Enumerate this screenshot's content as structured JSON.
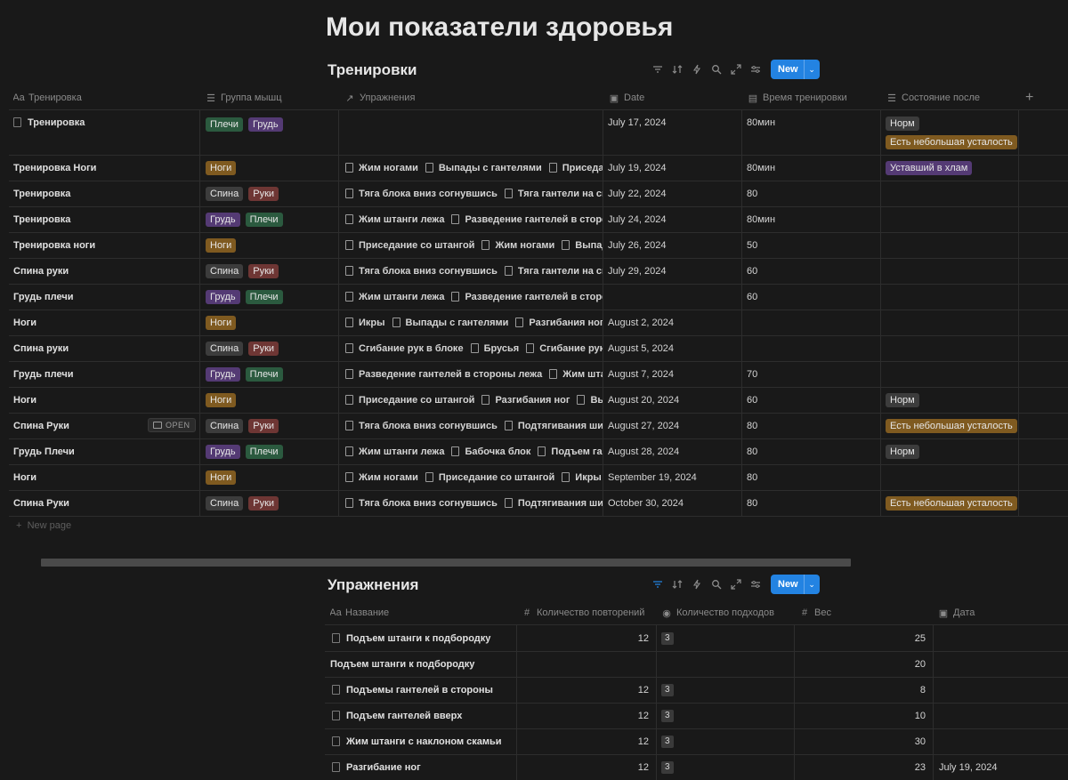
{
  "colors": {
    "background": "#191919",
    "accent": "#2383e2",
    "tag_green": "#2b5a3f",
    "tag_purple": "#543a74",
    "tag_brown": "#7f5a20",
    "tag_gray": "#3c3c3c",
    "tag_red": "#6e3634"
  },
  "page": {
    "title": "Мои показатели здоровья"
  },
  "toolbar_icons": [
    "filter-icon",
    "sort-icon",
    "lightning-icon",
    "search-icon",
    "expand-icon",
    "settings-icon"
  ],
  "workouts": {
    "title": "Тренировки",
    "new_label": "New",
    "new_page_label": "New page",
    "open_label": "OPEN",
    "columns": [
      {
        "icon": "Aa",
        "label": "Тренировка"
      },
      {
        "icon": "☰",
        "label": "Группа мышц"
      },
      {
        "icon": "↗",
        "label": "Упражнения"
      },
      {
        "icon": "▣",
        "label": "Date"
      },
      {
        "icon": "▤",
        "label": "Время тренировки"
      },
      {
        "icon": "☰",
        "label": "Состояние после"
      }
    ],
    "add_column": "+",
    "rows": [
      {
        "name": "Тренировка",
        "groups": [
          "Плечи",
          "Грудь"
        ],
        "exercises": [],
        "date": "July 17, 2024",
        "time": "80мин",
        "state": [
          "Норм",
          "Есть небольшая усталость"
        ]
      },
      {
        "name": "Тренировка Ноги",
        "groups": [
          "Ноги"
        ],
        "exercises": [
          "Жим ногами",
          "Выпады с гантелями",
          "Приседания со штангой"
        ],
        "date": "July 19, 2024",
        "time": "80мин",
        "state": [
          "Уставший в хлам"
        ]
      },
      {
        "name": "Тренировка",
        "groups": [
          "Спина",
          "Руки"
        ],
        "exercises": [
          "Тяга блока вниз согнувшись",
          "Тяга гантели на скамье"
        ],
        "date": "July 22, 2024",
        "time": "80",
        "state": []
      },
      {
        "name": "Тренировка",
        "groups": [
          "Грудь",
          "Плечи"
        ],
        "exercises": [
          "Жим штанги лежа",
          "Разведение гантелей в стороны лежа"
        ],
        "date": "July 24, 2024",
        "time": "80мин",
        "state": []
      },
      {
        "name": "Тренировка ноги",
        "groups": [
          "Ноги"
        ],
        "exercises": [
          "Приседание со штангой",
          "Жим ногами",
          "Выпады с гантелями"
        ],
        "date": "July 26, 2024",
        "time": "50",
        "state": []
      },
      {
        "name": "Спина руки",
        "groups": [
          "Спина",
          "Руки"
        ],
        "exercises": [
          "Тяга блока вниз согнувшись",
          "Тяга гантели на скамье"
        ],
        "date": "July 29, 2024",
        "time": "60",
        "state": []
      },
      {
        "name": "Грудь плечи",
        "groups": [
          "Грудь",
          "Плечи"
        ],
        "exercises": [
          "Жим штанги лежа",
          "Разведение гантелей в стороны лежа"
        ],
        "date": "",
        "time": "60",
        "state": []
      },
      {
        "name": "Ноги",
        "groups": [
          "Ноги"
        ],
        "exercises": [
          "Икры",
          "Выпады с гантелями",
          "Разгибания ног"
        ],
        "date": "August 2, 2024",
        "time": "",
        "state": []
      },
      {
        "name": "Спина руки",
        "groups": [
          "Спина",
          "Руки"
        ],
        "exercises": [
          "Сгибание рук в блоке",
          "Брусья",
          "Сгибание рук с гантелями"
        ],
        "date": "August 5, 2024",
        "time": "",
        "state": []
      },
      {
        "name": "Грудь плечи",
        "groups": [
          "Грудь",
          "Плечи"
        ],
        "exercises": [
          "Разведение гантелей в стороны лежа",
          "Жим штанги лежа"
        ],
        "date": "August 7, 2024",
        "time": "70",
        "state": []
      },
      {
        "name": "Ноги",
        "groups": [
          "Ноги"
        ],
        "exercises": [
          "Приседание со штангой",
          "Разгибания ног",
          "Выпады с гантелями"
        ],
        "date": "August 20, 2024",
        "time": "60",
        "state": [
          "Норм"
        ]
      },
      {
        "name": "Спина Руки",
        "groups": [
          "Спина",
          "Руки"
        ],
        "exercises": [
          "Тяга блока вниз согнувшись",
          "Подтягивания широким хватом"
        ],
        "date": "August 27, 2024",
        "time": "80",
        "state": [
          "Есть небольшая усталость"
        ]
      },
      {
        "name": "Грудь Плечи",
        "groups": [
          "Грудь",
          "Плечи"
        ],
        "exercises": [
          "Жим штанги лежа",
          "Бабочка блок",
          "Подъем гантелей вверх"
        ],
        "date": "August 28, 2024",
        "time": "80",
        "state": [
          "Норм"
        ]
      },
      {
        "name": "Ноги",
        "groups": [
          "Ноги"
        ],
        "exercises": [
          "Жим ногами",
          "Приседание со штангой",
          "Икры"
        ],
        "date": "September 19, 2024",
        "time": "80",
        "state": []
      },
      {
        "name": "Спина Руки",
        "groups": [
          "Спина",
          "Руки"
        ],
        "exercises": [
          "Тяга блока вниз согнувшись",
          "Подтягивания широким хватом"
        ],
        "date": "October 30, 2024",
        "time": "80",
        "state": [
          "Есть небольшая усталость"
        ]
      }
    ]
  },
  "exercises": {
    "title": "Упражнения",
    "new_label": "New",
    "columns": [
      {
        "icon": "Aa",
        "label": "Название"
      },
      {
        "icon": "#",
        "label": "Количество повторений"
      },
      {
        "icon": "◉",
        "label": "Количество подходов"
      },
      {
        "icon": "#",
        "label": "Вес"
      },
      {
        "icon": "▣",
        "label": "Дата"
      }
    ],
    "rows": [
      {
        "name": "Подъем штанги к подбородку",
        "has_icon": true,
        "reps": "12",
        "sets": "3",
        "weight": "25",
        "date": ""
      },
      {
        "name": "Подъем штанги к подбородку",
        "has_icon": false,
        "reps": "",
        "sets": "",
        "weight": "20",
        "date": ""
      },
      {
        "name": "Подъемы гантелей в стороны",
        "has_icon": true,
        "reps": "12",
        "sets": "3",
        "weight": "8",
        "date": ""
      },
      {
        "name": "Подъем гантелей вверх",
        "has_icon": true,
        "reps": "12",
        "sets": "3",
        "weight": "10",
        "date": ""
      },
      {
        "name": "Жим штанги с наклоном скамьи",
        "has_icon": true,
        "reps": "12",
        "sets": "3",
        "weight": "30",
        "date": ""
      },
      {
        "name": "Разгибание ног",
        "has_icon": true,
        "reps": "12",
        "sets": "3",
        "weight": "23",
        "date": "July 19, 2024"
      }
    ]
  }
}
